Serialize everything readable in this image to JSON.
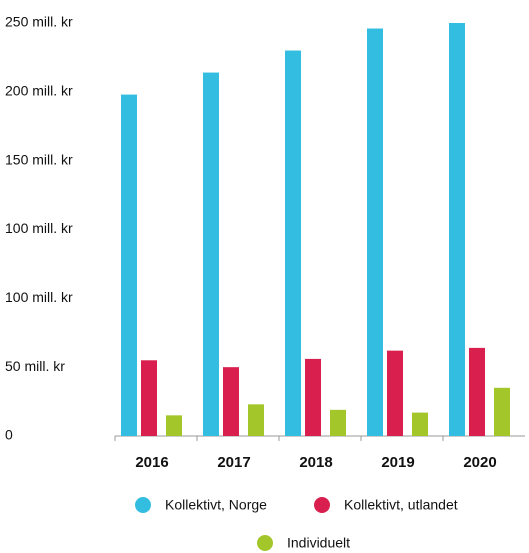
{
  "chart_data": {
    "type": "bar",
    "categories": [
      "2016",
      "2017",
      "2018",
      "2019",
      "2020"
    ],
    "series": [
      {
        "name": "Kollektivt, Norge",
        "color": "#33bde0",
        "values": [
          198,
          214,
          230,
          246,
          252
        ]
      },
      {
        "name": "Kollektivt, utlandet",
        "color": "#d81f4d",
        "values": [
          55,
          50,
          56,
          62,
          64
        ]
      },
      {
        "name": "Individuelt",
        "color": "#a3c62a",
        "values": [
          15,
          23,
          19,
          17,
          35
        ]
      }
    ],
    "ylim": [
      0,
      250
    ],
    "yticks": [
      0,
      {
        "value": 50,
        "label": "50 mill. kr"
      },
      {
        "value": 100,
        "label": "100 mill. kr"
      },
      {
        "value": 100,
        "label": "100 mill. kr"
      },
      {
        "value": 150,
        "label": "150 mill. kr"
      },
      {
        "value": 200,
        "label": "200 mill. kr"
      },
      {
        "value": 250,
        "label": "250 mill. kr"
      }
    ],
    "grid": false
  }
}
